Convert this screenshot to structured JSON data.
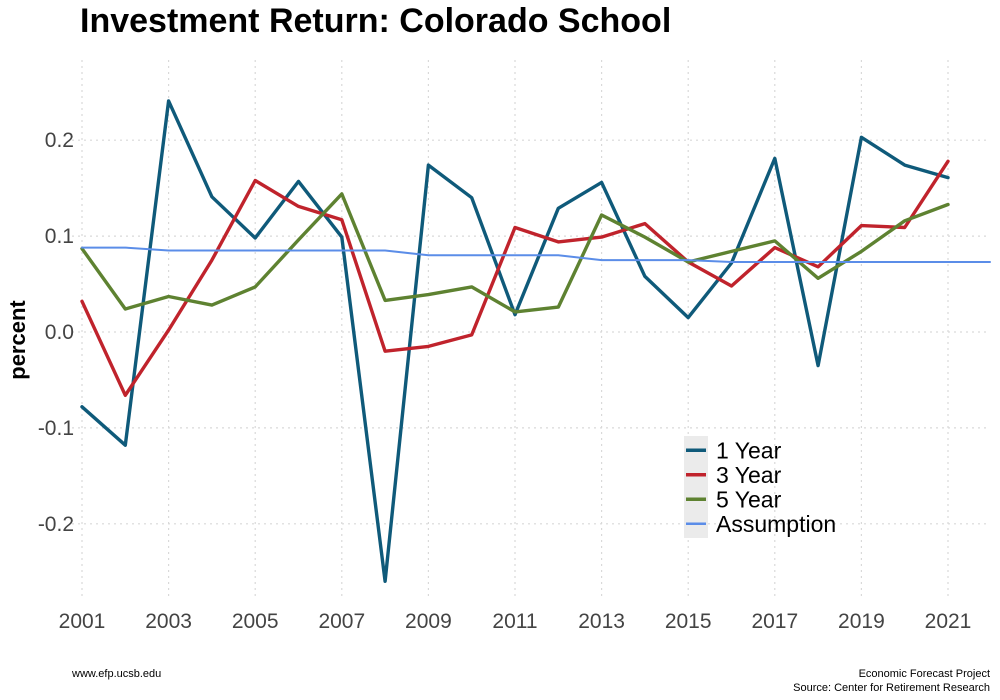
{
  "chart_data": {
    "type": "line",
    "title": "Investment Return: Colorado School",
    "xlabel": "",
    "ylabel": "percent",
    "xlim": [
      2001,
      2022
    ],
    "ylim": [
      -0.28,
      0.27
    ],
    "x_ticks": [
      2001,
      2003,
      2005,
      2007,
      2009,
      2011,
      2013,
      2015,
      2017,
      2019,
      2021
    ],
    "x_tick_labels": [
      "2001",
      "2003",
      "2005",
      "2007",
      "2009",
      "2011",
      "2013",
      "2015",
      "2017",
      "2019",
      "2021"
    ],
    "y_ticks": [
      -0.2,
      -0.1,
      0.0,
      0.1,
      0.2
    ],
    "y_tick_labels": [
      "-0.2",
      "-0.1",
      "0.0",
      "0.1",
      "0.2"
    ],
    "grid": true,
    "legend_position": "bottom-right",
    "series": [
      {
        "name": "1 Year",
        "color": "#0f5a7a",
        "x": [
          2001,
          2002,
          2003,
          2004,
          2005,
          2006,
          2007,
          2008,
          2009,
          2010,
          2011,
          2012,
          2013,
          2014,
          2015,
          2016,
          2017,
          2018,
          2019,
          2020,
          2021
        ],
        "values": [
          -0.078,
          -0.118,
          0.241,
          0.141,
          0.098,
          0.157,
          0.099,
          -0.26,
          0.174,
          0.14,
          0.018,
          0.129,
          0.156,
          0.058,
          0.015,
          0.072,
          0.181,
          -0.035,
          0.203,
          0.174,
          0.161
        ]
      },
      {
        "name": "3 Year",
        "color": "#c0232c",
        "x": [
          2001,
          2002,
          2003,
          2004,
          2005,
          2006,
          2007,
          2008,
          2009,
          2010,
          2011,
          2012,
          2013,
          2014,
          2015,
          2016,
          2017,
          2018,
          2019,
          2020,
          2021
        ],
        "values": [
          0.032,
          -0.066,
          0.002,
          0.075,
          0.158,
          0.131,
          0.117,
          -0.02,
          -0.015,
          -0.003,
          0.109,
          0.094,
          0.099,
          0.113,
          0.073,
          0.048,
          0.088,
          0.068,
          0.111,
          0.109,
          0.178
        ]
      },
      {
        "name": "5 Year",
        "color": "#5e8231",
        "x": [
          2001,
          2002,
          2003,
          2004,
          2005,
          2006,
          2007,
          2008,
          2009,
          2010,
          2011,
          2012,
          2013,
          2014,
          2015,
          2016,
          2017,
          2018,
          2019,
          2020,
          2021
        ],
        "values": [
          0.087,
          0.024,
          0.037,
          0.028,
          0.047,
          0.096,
          0.144,
          0.033,
          0.039,
          0.047,
          0.021,
          0.026,
          0.122,
          0.099,
          0.073,
          0.084,
          0.095,
          0.056,
          0.084,
          0.116,
          0.133
        ]
      },
      {
        "name": "Assumption",
        "color": "#5b8de8",
        "x": [
          2001,
          2002,
          2003,
          2004,
          2005,
          2006,
          2007,
          2008,
          2009,
          2010,
          2011,
          2012,
          2013,
          2014,
          2015,
          2016,
          2017,
          2018,
          2019,
          2020,
          2021,
          2022
        ],
        "values": [
          0.088,
          0.088,
          0.085,
          0.085,
          0.085,
          0.085,
          0.085,
          0.085,
          0.08,
          0.08,
          0.08,
          0.08,
          0.075,
          0.075,
          0.075,
          0.073,
          0.073,
          0.073,
          0.073,
          0.073,
          0.073,
          0.073
        ]
      }
    ]
  },
  "footer": {
    "left": "www.efp.ucsb.edu",
    "right_line1": "Economic Forecast Project",
    "right_line2": "Source: Center for Retirement Research"
  }
}
